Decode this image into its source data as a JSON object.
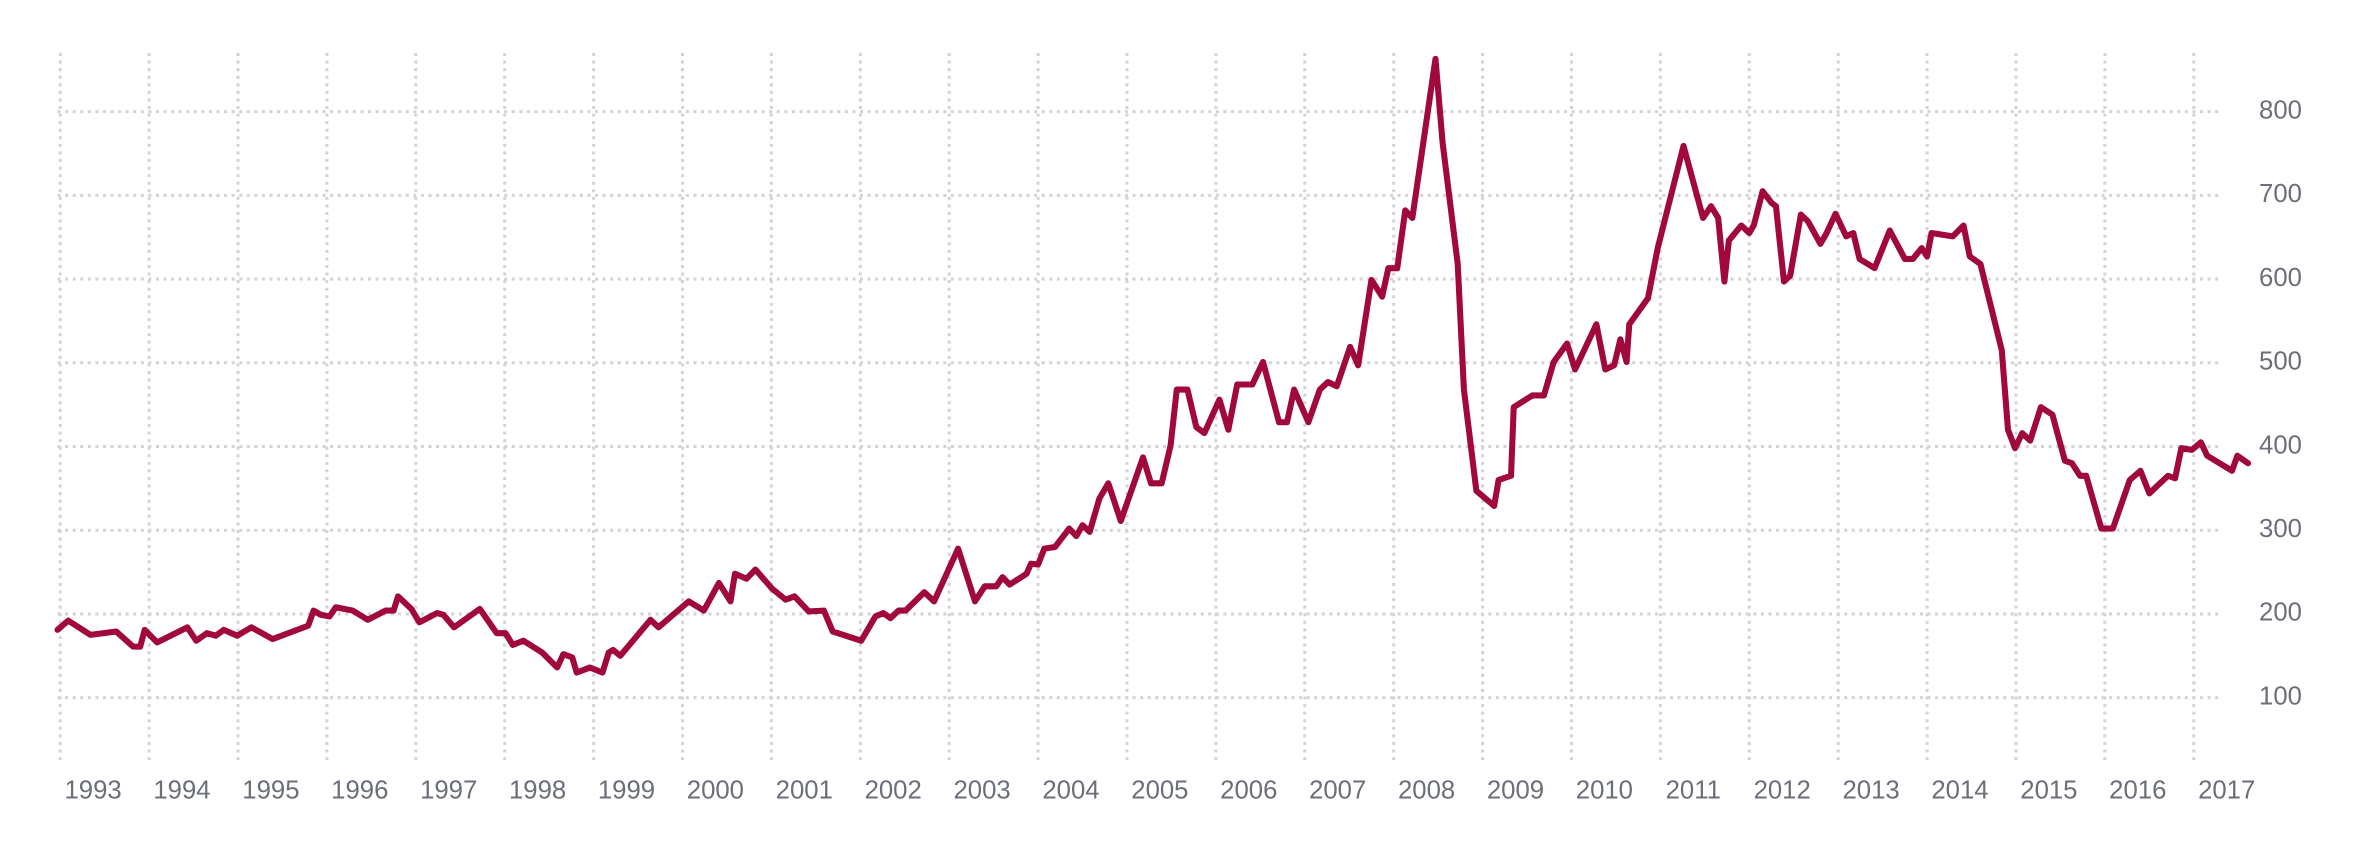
{
  "chart_data": {
    "type": "line",
    "x": [
      1992.97,
      1993.09,
      1993.34,
      1993.63,
      1993.82,
      1993.9,
      1993.95,
      1994.09,
      1994.43,
      1994.53,
      1994.65,
      1994.75,
      1994.84,
      1994.99,
      1995.15,
      1995.39,
      1995.79,
      1995.85,
      1995.93,
      1996.03,
      1996.1,
      1996.29,
      1996.46,
      1996.66,
      1996.75,
      1996.8,
      1996.95,
      1997.04,
      1997.24,
      1997.31,
      1997.43,
      1997.72,
      1997.91,
      1998.01,
      1998.09,
      1998.21,
      1998.42,
      1998.59,
      1998.66,
      1998.76,
      1998.81,
      1998.96,
      1999.1,
      1999.17,
      1999.22,
      1999.3,
      1999.64,
      1999.73,
      2000.07,
      2000.24,
      2000.41,
      2000.54,
      2000.59,
      2000.72,
      2000.82,
      2001.01,
      2001.16,
      2001.26,
      2001.42,
      2001.59,
      2001.69,
      2002.01,
      2002.17,
      2002.26,
      2002.34,
      2002.43,
      2002.51,
      2002.72,
      2002.83,
      2003.1,
      2003.29,
      2003.4,
      2003.53,
      2003.6,
      2003.68,
      2003.87,
      2003.92,
      2004.0,
      2004.07,
      2004.19,
      2004.35,
      2004.43,
      2004.5,
      2004.58,
      2004.69,
      2004.79,
      2004.93,
      2005.18,
      2005.27,
      2005.39,
      2005.49,
      2005.56,
      2005.68,
      2005.78,
      2005.87,
      2006.04,
      2006.14,
      2006.24,
      2006.41,
      2006.53,
      2006.71,
      2006.8,
      2006.88,
      2007.04,
      2007.17,
      2007.26,
      2007.36,
      2007.51,
      2007.6,
      2007.75,
      2007.87,
      2007.94,
      2008.04,
      2008.13,
      2008.21,
      2008.47,
      2008.55,
      2008.72,
      2008.79,
      2008.93,
      2009.13,
      2009.18,
      2009.32,
      2009.35,
      2009.56,
      2009.69,
      2009.8,
      2009.95,
      2010.04,
      2010.28,
      2010.38,
      2010.48,
      2010.55,
      2010.62,
      2010.65,
      2010.86,
      2010.97,
      2011.26,
      2011.48,
      2011.57,
      2011.65,
      2011.72,
      2011.77,
      2011.91,
      2012.0,
      2012.05,
      2012.15,
      2012.25,
      2012.3,
      2012.39,
      2012.46,
      2012.58,
      2012.66,
      2012.8,
      2012.87,
      2012.97,
      2013.09,
      2013.17,
      2013.24,
      2013.41,
      2013.58,
      2013.75,
      2013.84,
      2013.94,
      2014.0,
      2014.05,
      2014.29,
      2014.41,
      2014.48,
      2014.6,
      2014.84,
      2014.91,
      2014.99,
      2015.07,
      2015.16,
      2015.28,
      2015.41,
      2015.55,
      2015.63,
      2015.72,
      2015.79,
      2015.96,
      2016.09,
      2016.28,
      2016.4,
      2016.5,
      2016.71,
      2016.79,
      2016.86,
      2016.98,
      2017.08,
      2017.15,
      2017.43,
      2017.49,
      2017.61
    ],
    "series": [
      {
        "color": "#a0093a",
        "values": [
          181,
          192,
          175,
          179,
          161,
          161,
          181,
          166,
          184,
          168,
          177,
          174,
          181,
          174,
          184,
          170,
          186,
          204,
          199,
          197,
          208,
          204,
          193,
          204,
          204,
          221,
          206,
          190,
          201,
          199,
          184,
          206,
          177,
          177,
          163,
          168,
          154,
          136,
          152,
          148,
          130,
          136,
          130,
          154,
          157,
          150,
          193,
          184,
          215,
          204,
          237,
          215,
          248,
          242,
          253,
          230,
          217,
          221,
          203,
          204,
          179,
          168,
          197,
          201,
          195,
          204,
          204,
          226,
          215,
          278,
          215,
          233,
          233,
          244,
          235,
          248,
          260,
          259,
          278,
          280,
          302,
          293,
          306,
          298,
          338,
          356,
          311,
          387,
          356,
          356,
          401,
          468,
          468,
          423,
          416,
          456,
          420,
          474,
          474,
          501,
          429,
          429,
          468,
          429,
          468,
          477,
          472,
          519,
          497,
          599,
          579,
          613,
          613,
          682,
          673,
          863,
          763,
          618,
          468,
          347,
          329,
          360,
          365,
          447,
          461,
          461,
          501,
          523,
          492,
          546,
          492,
          497,
          528,
          501,
          546,
          577,
          637,
          759,
          673,
          687,
          673,
          597,
          646,
          664,
          655,
          664,
          705,
          691,
          687,
          597,
          604,
          677,
          669,
          642,
          655,
          678,
          651,
          655,
          624,
          613,
          658,
          624,
          624,
          637,
          627,
          655,
          651,
          664,
          627,
          618,
          515,
          420,
          398,
          416,
          407,
          447,
          438,
          383,
          380,
          365,
          365,
          302,
          302,
          360,
          371,
          344,
          365,
          362,
          398,
          396,
          405,
          389,
          371,
          389,
          380
        ]
      }
    ],
    "xlim": [
      1992.97,
      2017.7
    ],
    "xticks": [
      1993,
      1994,
      1995,
      1996,
      1997,
      1998,
      1999,
      2000,
      2001,
      2002,
      2003,
      2004,
      2005,
      2006,
      2007,
      2008,
      2009,
      2010,
      2011,
      2012,
      2013,
      2014,
      2015,
      2016,
      2017
    ],
    "ylim": [
      20,
      870
    ],
    "yticks": [
      100,
      200,
      300,
      400,
      500,
      600,
      700,
      800
    ],
    "grid": true
  }
}
